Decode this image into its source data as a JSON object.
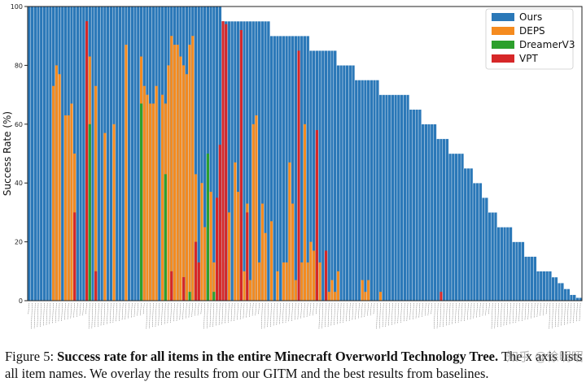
{
  "caption": {
    "prefix": "Figure 5: ",
    "bold": "Success rate for all items in the entire Minecraft Overworld Technology Tree.",
    "rest": " The x axis lists all item names. We overlay the results from our GITM and the best results from baselines."
  },
  "watermark": "知乎 @徐明昭",
  "colors": {
    "Ours": "#2b78b8",
    "DEPS": "#f58b1f",
    "DreamerV3": "#2ca02c",
    "VPT": "#d62728"
  },
  "chart_data": {
    "type": "bar",
    "title": "",
    "xlabel": "",
    "ylabel": "Success Rate (%)",
    "ylim": [
      0,
      100
    ],
    "yticks": [
      0,
      20,
      40,
      60,
      80,
      100
    ],
    "legend": {
      "position": "top-right",
      "entries": [
        "Ours",
        "DEPS",
        "DreamerV3",
        "VPT"
      ]
    },
    "categories_note": "x-axis lists all item names (tick labels too small to read)",
    "series": [
      {
        "name": "Ours",
        "values_by_run": [
          [
            100,
            64
          ],
          [
            95,
            16
          ],
          [
            90,
            13
          ],
          [
            85,
            9
          ],
          [
            80,
            6
          ],
          [
            75,
            8
          ],
          [
            70,
            10
          ],
          [
            65,
            4
          ],
          [
            60,
            5
          ],
          [
            55,
            4
          ],
          [
            50,
            5
          ],
          [
            45,
            3
          ],
          [
            40,
            3
          ],
          [
            35,
            2
          ],
          [
            30,
            3
          ],
          [
            25,
            5
          ],
          [
            20,
            4
          ],
          [
            15,
            4
          ],
          [
            10,
            5
          ],
          [
            8,
            2
          ],
          [
            6,
            2
          ],
          [
            4,
            2
          ],
          [
            2,
            2
          ],
          [
            1,
            2
          ]
        ]
      },
      {
        "name": "DEPS",
        "points": [
          [
            8,
            73
          ],
          [
            9,
            80
          ],
          [
            10,
            77
          ],
          [
            12,
            63
          ],
          [
            13,
            63
          ],
          [
            14,
            67
          ],
          [
            15,
            50
          ],
          [
            20,
            83
          ],
          [
            22,
            73
          ],
          [
            25,
            57
          ],
          [
            28,
            60
          ],
          [
            32,
            87
          ],
          [
            37,
            83
          ],
          [
            38,
            73
          ],
          [
            39,
            70
          ],
          [
            40,
            67
          ],
          [
            41,
            67
          ],
          [
            42,
            73
          ],
          [
            44,
            70
          ],
          [
            45,
            67
          ],
          [
            46,
            80
          ],
          [
            47,
            90
          ],
          [
            48,
            87
          ],
          [
            49,
            87
          ],
          [
            50,
            83
          ],
          [
            51,
            80
          ],
          [
            52,
            77
          ],
          [
            53,
            87
          ],
          [
            54,
            90
          ],
          [
            55,
            43
          ],
          [
            56,
            13
          ],
          [
            57,
            40
          ],
          [
            58,
            25
          ],
          [
            60,
            37
          ],
          [
            61,
            13
          ],
          [
            63,
            27
          ],
          [
            64,
            13
          ],
          [
            66,
            30
          ],
          [
            68,
            47
          ],
          [
            69,
            37
          ],
          [
            70,
            27
          ],
          [
            71,
            10
          ],
          [
            72,
            33
          ],
          [
            73,
            7
          ],
          [
            74,
            60
          ],
          [
            75,
            63
          ],
          [
            76,
            13
          ],
          [
            77,
            33
          ],
          [
            78,
            23
          ],
          [
            80,
            27
          ],
          [
            82,
            10
          ],
          [
            84,
            13
          ],
          [
            85,
            13
          ],
          [
            86,
            47
          ],
          [
            87,
            33
          ],
          [
            88,
            7
          ],
          [
            90,
            13
          ],
          [
            91,
            60
          ],
          [
            92,
            13
          ],
          [
            93,
            20
          ],
          [
            94,
            17
          ],
          [
            95,
            50
          ],
          [
            96,
            13
          ],
          [
            98,
            3
          ],
          [
            99,
            3
          ],
          [
            100,
            7
          ],
          [
            101,
            3
          ],
          [
            102,
            10
          ],
          [
            110,
            7
          ],
          [
            111,
            3
          ],
          [
            112,
            7
          ],
          [
            116,
            3
          ]
        ]
      },
      {
        "name": "DreamerV3",
        "points": [
          [
            20,
            60
          ],
          [
            37,
            67
          ],
          [
            45,
            43
          ],
          [
            53,
            3
          ],
          [
            59,
            50
          ],
          [
            61,
            3
          ]
        ]
      },
      {
        "name": "VPT",
        "points": [
          [
            15,
            30
          ],
          [
            19,
            95
          ],
          [
            22,
            10
          ],
          [
            47,
            10
          ],
          [
            51,
            8
          ],
          [
            55,
            20
          ],
          [
            56,
            13
          ],
          [
            62,
            35
          ],
          [
            63,
            53
          ],
          [
            64,
            95
          ],
          [
            65,
            94
          ],
          [
            70,
            92
          ],
          [
            72,
            30
          ],
          [
            89,
            85
          ],
          [
            95,
            58
          ],
          [
            98,
            17
          ],
          [
            136,
            3
          ]
        ]
      }
    ]
  }
}
